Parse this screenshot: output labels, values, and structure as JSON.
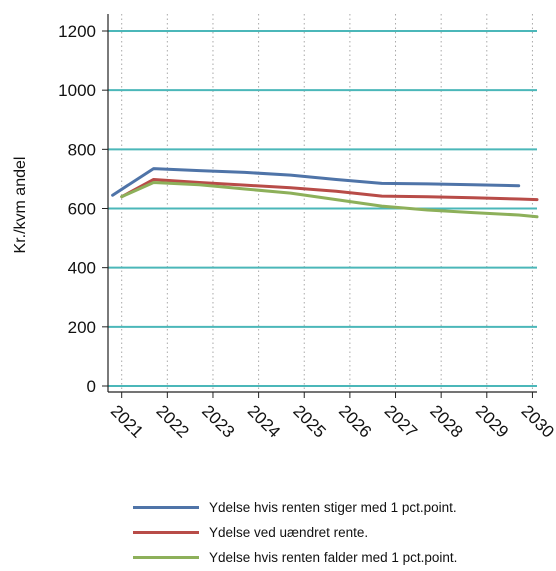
{
  "chart_data": {
    "type": "line",
    "title": "",
    "xlabel": "",
    "ylabel": "Kr./kvm andel",
    "ylim": [
      0,
      1250
    ],
    "yticks": [
      0,
      200,
      400,
      600,
      800,
      1000,
      1200
    ],
    "xlim": [
      2020.7,
      2030.1
    ],
    "xticks": [
      2021,
      2022,
      2023,
      2024,
      2025,
      2026,
      2027,
      2028,
      2029,
      2030
    ],
    "grid": {
      "horizontal": true,
      "vertical_dotted": true
    },
    "legend_position": "bottom",
    "series": [
      {
        "name": "Ydelse hvis renten stiger med 1 pct.point.",
        "color": "#4f74a8",
        "x": [
          2020.8,
          2021.7,
          2022.7,
          2023.7,
          2024.7,
          2025.7,
          2026.7,
          2027.7,
          2028.7,
          2029.7
        ],
        "y": [
          645,
          735,
          728,
          722,
          713,
          698,
          685,
          683,
          680,
          677
        ]
      },
      {
        "name": "Ydelse ved uændret rente.",
        "color": "#b84c48",
        "x": [
          2021.0,
          2021.7,
          2022.7,
          2023.7,
          2024.7,
          2025.7,
          2026.7,
          2027.7,
          2028.7,
          2029.7,
          2030.1
        ],
        "y": [
          640,
          698,
          688,
          679,
          670,
          658,
          642,
          640,
          636,
          632,
          630
        ]
      },
      {
        "name": "Ydelse hvis renten falder med 1 pct.point.",
        "color": "#8db05a",
        "x": [
          2021.0,
          2021.7,
          2022.7,
          2023.7,
          2024.7,
          2025.7,
          2026.7,
          2027.7,
          2028.7,
          2029.7,
          2030.1
        ],
        "y": [
          640,
          688,
          680,
          666,
          652,
          630,
          608,
          595,
          586,
          578,
          572
        ]
      }
    ]
  },
  "colors": {
    "grid_horizontal": "#4bb7b9",
    "grid_vertical": "#a9a9a9",
    "axis": "#222222"
  }
}
